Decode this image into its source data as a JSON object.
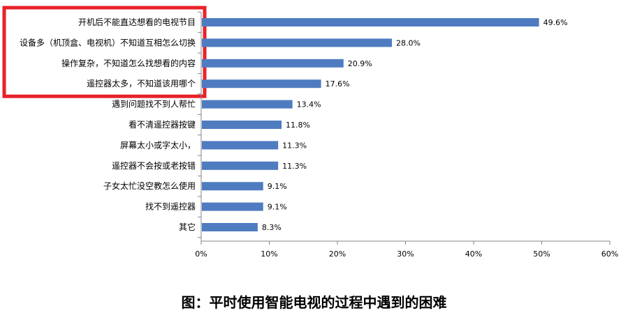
{
  "chart_data": {
    "type": "bar",
    "orientation": "horizontal",
    "title": "图：平时使用智能电视的过程中遇到的困难",
    "categories": [
      "开机后不能直达想看的电视节目",
      "设备多（机顶盒、电视机）不知道互相怎么切换",
      "操作复杂，不知道怎么找想看的内容",
      "遥控器太多，不知道该用哪个",
      "遇到问题找不到人帮忙",
      "看不清遥控器按键",
      "屏幕太小或字太小，",
      "遥控器不会按或老按错",
      "子女太忙没空教怎么使用",
      "找不到遥控器",
      "其它"
    ],
    "values": [
      49.6,
      28.0,
      20.9,
      17.6,
      13.4,
      11.8,
      11.3,
      11.3,
      9.1,
      9.1,
      8.3
    ],
    "value_labels": [
      "49.6%",
      "28.0%",
      "20.9%",
      "17.6%",
      "13.4%",
      "11.8%",
      "11.3%",
      "11.3%",
      "9.1%",
      "9.1%",
      "8.3%"
    ],
    "xlim": [
      0,
      60
    ],
    "xticks": [
      "0%",
      "10%",
      "20%",
      "30%",
      "40%",
      "50%",
      "60%"
    ],
    "grid": false,
    "bar_color": "#4F7CC0",
    "highlight": {
      "color": "#E8212A",
      "categories": [
        0,
        1,
        2,
        3
      ]
    }
  }
}
